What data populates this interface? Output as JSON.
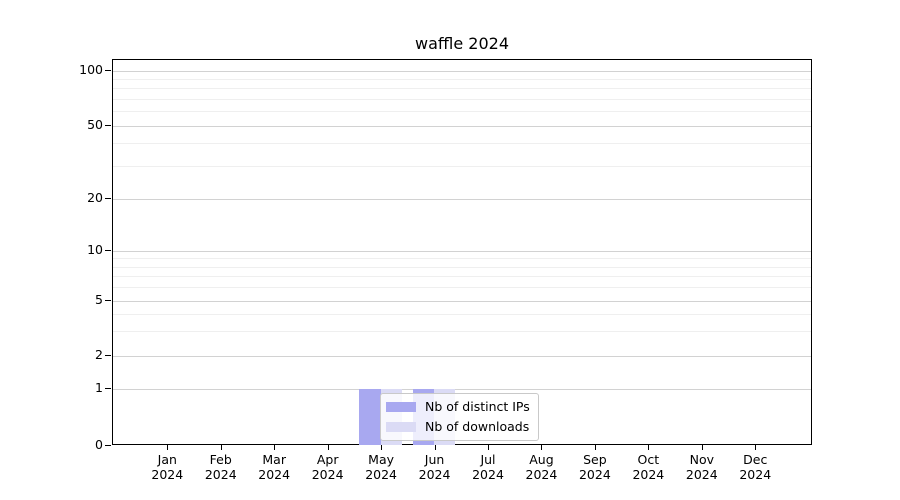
{
  "title": "waffle 2024",
  "chart_data": {
    "type": "bar",
    "title": "waffle 2024",
    "categories": [
      "Jan 2024",
      "Feb 2024",
      "Mar 2024",
      "Apr 2024",
      "May 2024",
      "Jun 2024",
      "Jul 2024",
      "Aug 2024",
      "Sep 2024",
      "Oct 2024",
      "Nov 2024",
      "Dec 2024"
    ],
    "months": [
      "Jan",
      "Feb",
      "Mar",
      "Apr",
      "May",
      "Jun",
      "Jul",
      "Aug",
      "Sep",
      "Oct",
      "Nov",
      "Dec"
    ],
    "year": "2024",
    "series": [
      {
        "name": "Nb of distinct IPs",
        "color": "#a8a8f0",
        "values": [
          0,
          0,
          0,
          0,
          1,
          1,
          0,
          0,
          0,
          0,
          0,
          0
        ]
      },
      {
        "name": "Nb of downloads",
        "color": "#dbdbf5",
        "values": [
          0,
          0,
          0,
          0,
          1,
          1,
          0,
          0,
          0,
          0,
          0,
          0
        ]
      }
    ],
    "xlabel": "",
    "ylabel": "",
    "yscale": "symlog",
    "ylim": [
      0,
      110
    ],
    "y_ticks": [
      0,
      1,
      2,
      5,
      10,
      20,
      50,
      100
    ],
    "y_minor_gridlines": [
      3,
      4,
      6,
      7,
      8,
      9,
      30,
      40,
      60,
      70,
      80,
      90
    ],
    "grid": true,
    "legend_position": "inside lower center"
  },
  "colors": {
    "axis": "#000000",
    "grid_major": "#d2d2d2",
    "grid_minor": "#efefef",
    "legend_border": "#c9c9c9",
    "background": "#ffffff"
  }
}
